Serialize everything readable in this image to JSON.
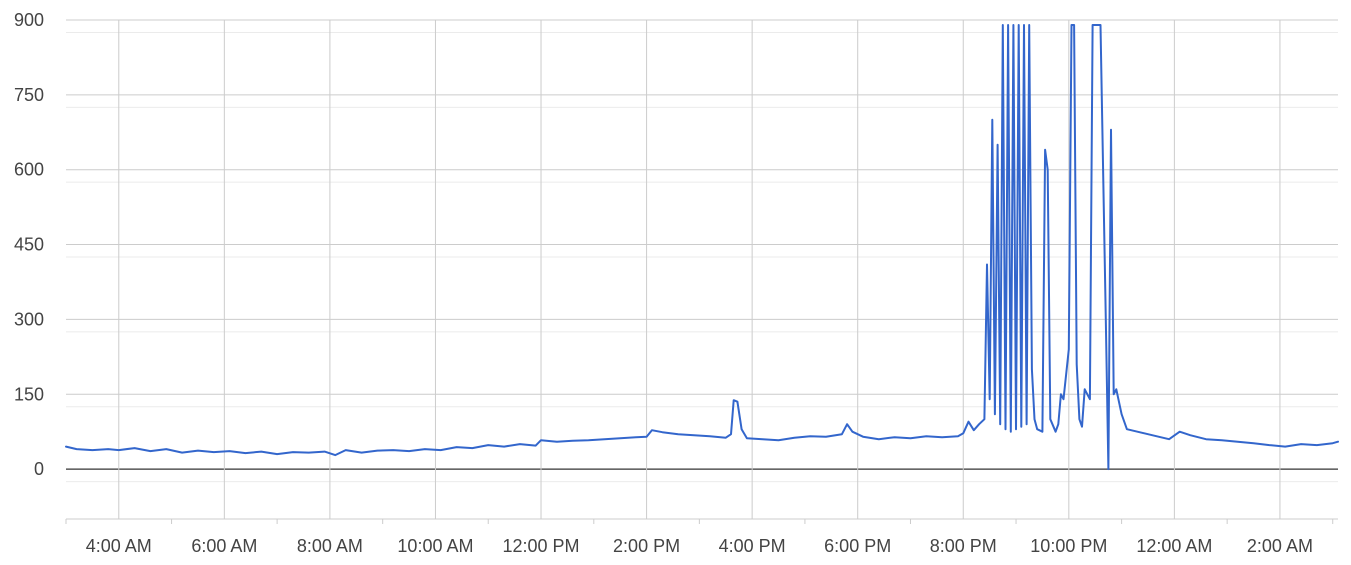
{
  "chart_data": {
    "type": "line",
    "title": "",
    "xlabel": "",
    "ylabel": "",
    "ylim": [
      -100,
      900
    ],
    "yticks": [
      0,
      150,
      300,
      450,
      600,
      750,
      900
    ],
    "ytick_labels": [
      "0",
      "150",
      "300",
      "450",
      "600",
      "750",
      "900"
    ],
    "xlim": [
      3.0,
      27.1
    ],
    "xticks": [
      4,
      6,
      8,
      10,
      12,
      14,
      16,
      18,
      20,
      22,
      24,
      26
    ],
    "xtick_labels": [
      "4:00 AM",
      "6:00 AM",
      "8:00 AM",
      "10:00 AM",
      "12:00 PM",
      "2:00 PM",
      "4:00 PM",
      "6:00 PM",
      "8:00 PM",
      "10:00 PM",
      "12:00 AM",
      "2:00 AM"
    ],
    "grid": true,
    "legend": "none",
    "colors": {
      "line": "#3366cc",
      "grid": "#cccccc",
      "minor_grid": "#ebebeb",
      "zero_line": "#333333"
    },
    "series": [
      {
        "values": [
          [
            3.0,
            45
          ],
          [
            3.2,
            40
          ],
          [
            3.5,
            38
          ],
          [
            3.8,
            40
          ],
          [
            4.0,
            38
          ],
          [
            4.3,
            42
          ],
          [
            4.6,
            36
          ],
          [
            4.9,
            40
          ],
          [
            5.2,
            33
          ],
          [
            5.5,
            37
          ],
          [
            5.8,
            34
          ],
          [
            6.1,
            36
          ],
          [
            6.4,
            32
          ],
          [
            6.7,
            35
          ],
          [
            7.0,
            30
          ],
          [
            7.3,
            34
          ],
          [
            7.6,
            33
          ],
          [
            7.9,
            35
          ],
          [
            8.1,
            28
          ],
          [
            8.3,
            38
          ],
          [
            8.6,
            33
          ],
          [
            8.9,
            37
          ],
          [
            9.2,
            38
          ],
          [
            9.5,
            36
          ],
          [
            9.8,
            40
          ],
          [
            10.1,
            38
          ],
          [
            10.4,
            44
          ],
          [
            10.7,
            42
          ],
          [
            11.0,
            48
          ],
          [
            11.3,
            45
          ],
          [
            11.6,
            50
          ],
          [
            11.9,
            47
          ],
          [
            12.0,
            58
          ],
          [
            12.3,
            55
          ],
          [
            12.6,
            57
          ],
          [
            12.9,
            58
          ],
          [
            13.2,
            60
          ],
          [
            13.5,
            62
          ],
          [
            13.8,
            64
          ],
          [
            14.0,
            65
          ],
          [
            14.1,
            78
          ],
          [
            14.3,
            74
          ],
          [
            14.6,
            70
          ],
          [
            14.9,
            68
          ],
          [
            15.2,
            66
          ],
          [
            15.5,
            63
          ],
          [
            15.6,
            70
          ],
          [
            15.65,
            138
          ],
          [
            15.72,
            135
          ],
          [
            15.8,
            80
          ],
          [
            15.9,
            62
          ],
          [
            16.2,
            60
          ],
          [
            16.5,
            58
          ],
          [
            16.8,
            63
          ],
          [
            17.1,
            66
          ],
          [
            17.4,
            65
          ],
          [
            17.7,
            70
          ],
          [
            17.8,
            90
          ],
          [
            17.9,
            75
          ],
          [
            18.1,
            65
          ],
          [
            18.4,
            60
          ],
          [
            18.7,
            64
          ],
          [
            19.0,
            62
          ],
          [
            19.3,
            66
          ],
          [
            19.6,
            64
          ],
          [
            19.9,
            66
          ],
          [
            20.0,
            72
          ],
          [
            20.1,
            95
          ],
          [
            20.2,
            78
          ],
          [
            20.3,
            90
          ],
          [
            20.4,
            100
          ],
          [
            20.45,
            410
          ],
          [
            20.5,
            140
          ],
          [
            20.55,
            700
          ],
          [
            20.6,
            110
          ],
          [
            20.65,
            650
          ],
          [
            20.7,
            90
          ],
          [
            20.75,
            890
          ],
          [
            20.8,
            80
          ],
          [
            20.85,
            890
          ],
          [
            20.9,
            75
          ],
          [
            20.95,
            890
          ],
          [
            21.0,
            80
          ],
          [
            21.05,
            890
          ],
          [
            21.1,
            85
          ],
          [
            21.15,
            890
          ],
          [
            21.2,
            90
          ],
          [
            21.25,
            890
          ],
          [
            21.3,
            200
          ],
          [
            21.35,
            100
          ],
          [
            21.4,
            80
          ],
          [
            21.5,
            75
          ],
          [
            21.55,
            640
          ],
          [
            21.6,
            600
          ],
          [
            21.65,
            100
          ],
          [
            21.75,
            75
          ],
          [
            21.8,
            90
          ],
          [
            21.85,
            150
          ],
          [
            21.9,
            140
          ],
          [
            22.0,
            240
          ],
          [
            22.05,
            890
          ],
          [
            22.1,
            890
          ],
          [
            22.15,
            210
          ],
          [
            22.2,
            100
          ],
          [
            22.25,
            85
          ],
          [
            22.3,
            160
          ],
          [
            22.4,
            140
          ],
          [
            22.45,
            890
          ],
          [
            22.5,
            890
          ],
          [
            22.6,
            890
          ],
          [
            22.65,
            600
          ],
          [
            22.7,
            300
          ],
          [
            22.75,
            0
          ],
          [
            22.8,
            680
          ],
          [
            22.85,
            150
          ],
          [
            22.9,
            160
          ],
          [
            23.0,
            110
          ],
          [
            23.1,
            80
          ],
          [
            23.3,
            75
          ],
          [
            23.5,
            70
          ],
          [
            23.7,
            65
          ],
          [
            23.9,
            60
          ],
          [
            24.1,
            75
          ],
          [
            24.3,
            68
          ],
          [
            24.6,
            60
          ],
          [
            24.9,
            58
          ],
          [
            25.2,
            55
          ],
          [
            25.5,
            52
          ],
          [
            25.8,
            48
          ],
          [
            26.1,
            45
          ],
          [
            26.4,
            50
          ],
          [
            26.7,
            48
          ],
          [
            27.0,
            52
          ],
          [
            27.1,
            55
          ]
        ]
      }
    ]
  }
}
